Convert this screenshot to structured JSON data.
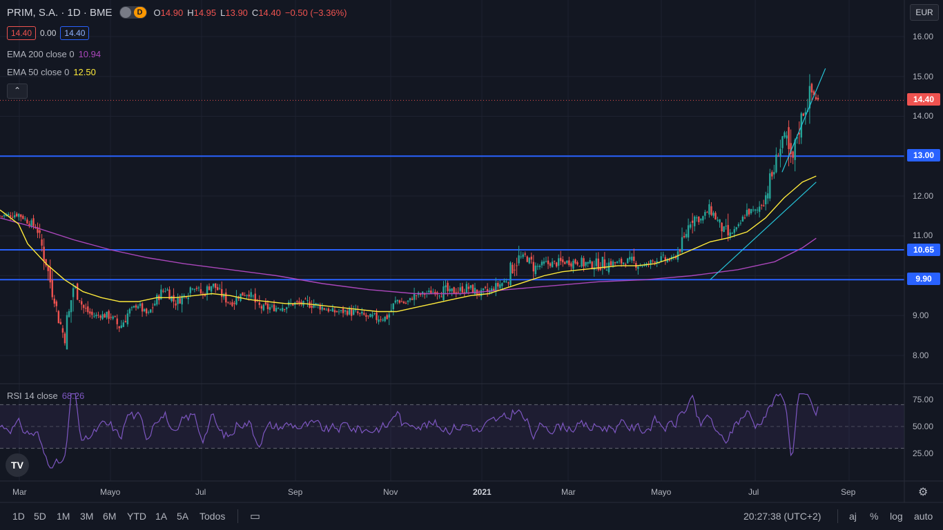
{
  "header": {
    "symbol": "PRIM, S.A. · 1D · BME",
    "toggle_d": "D",
    "o_label": "O",
    "o_value": "14.90",
    "h_label": "H",
    "h_value": "14.95",
    "l_label": "L",
    "l_value": "13.90",
    "c_label": "C",
    "c_value": "14.40",
    "change": "−0.50 (−3.36%)",
    "bid": "14.40",
    "spread": "0.00",
    "ask": "14.40"
  },
  "indicators": {
    "ema200_label": "EMA 200 close 0",
    "ema200_value": "10.94",
    "ema50_label": "EMA 50 close 0",
    "ema50_value": "12.50",
    "rsi_label": "RSI 14 close",
    "rsi_value": "68.26",
    "collapse_glyph": "⌃"
  },
  "price_tags": {
    "current": "14.40",
    "level_13": "13.00",
    "level_1065": "10.65",
    "level_990": "9.90"
  },
  "currency": "EUR",
  "logo": "TV",
  "bottom_toolbar": {
    "ranges": [
      "1D",
      "5D",
      "1M",
      "3M",
      "6M",
      "YTD",
      "1A",
      "5A",
      "Todos"
    ],
    "time": "20:27:38 (UTC+2)",
    "right_buttons": [
      "aj",
      "%",
      "log",
      "auto"
    ]
  },
  "colors": {
    "up": "#26a69a",
    "down": "#ef5350",
    "ema50": "#ffeb3b",
    "ema200": "#ab47bc",
    "hline": "#2962ff",
    "trend": "#26c6da",
    "rsi": "#7e57c2",
    "bg": "#131722"
  },
  "chart_data": [
    {
      "type": "candlestick",
      "title": "PRIM, S.A. · 1D · BME",
      "x_ticks": [
        "Mar",
        "Mayo",
        "Jul",
        "Sep",
        "Nov",
        "2021",
        "Mar",
        "Mayo",
        "Jul",
        "Sep"
      ],
      "y_ticks": [
        "16.00",
        "15.00",
        "14.00",
        "12.00",
        "11.00",
        "9.00",
        "8.00"
      ],
      "ylim": [
        7.4,
        16.7
      ],
      "horizontal_levels": [
        13.0,
        10.65,
        9.9
      ],
      "last_close": 14.4,
      "ema50_last": 12.5,
      "ema200_last": 10.94,
      "close_path": [
        [
          0,
          11.5
        ],
        [
          2,
          11.55
        ],
        [
          4,
          11.2
        ],
        [
          5,
          10.3
        ],
        [
          6,
          9.3
        ],
        [
          7,
          8.4
        ],
        [
          8,
          9.8
        ],
        [
          9,
          9.2
        ],
        [
          10,
          9.0
        ],
        [
          12,
          9.0
        ],
        [
          13,
          8.7
        ],
        [
          14,
          9.1
        ],
        [
          15,
          9.3
        ],
        [
          16,
          9.0
        ],
        [
          17,
          9.4
        ],
        [
          18,
          9.7
        ],
        [
          19,
          9.3
        ],
        [
          20,
          9.5
        ],
        [
          21,
          9.8
        ],
        [
          22,
          9.5
        ],
        [
          23,
          9.8
        ],
        [
          25,
          9.3
        ],
        [
          26,
          9.5
        ],
        [
          27,
          9.6
        ],
        [
          28,
          9.2
        ],
        [
          30,
          9.2
        ],
        [
          32,
          9.3
        ],
        [
          34,
          9.3
        ],
        [
          36,
          9.1
        ],
        [
          38,
          9.1
        ],
        [
          40,
          8.95
        ],
        [
          42,
          8.95
        ],
        [
          43,
          9.4
        ],
        [
          44,
          9.3
        ],
        [
          45,
          9.5
        ],
        [
          47,
          9.6
        ],
        [
          49,
          9.6
        ],
        [
          51,
          9.7
        ],
        [
          52,
          9.55
        ],
        [
          53,
          9.6
        ],
        [
          55,
          9.9
        ],
        [
          56,
          10.4
        ],
        [
          57,
          10.5
        ],
        [
          58,
          10.2
        ],
        [
          59,
          10.3
        ],
        [
          60,
          10.3
        ],
        [
          62,
          10.35
        ],
        [
          64,
          10.3
        ],
        [
          66,
          10.3
        ],
        [
          68,
          10.35
        ],
        [
          70,
          10.25
        ],
        [
          71,
          10.4
        ],
        [
          73,
          10.4
        ],
        [
          74,
          10.8
        ],
        [
          75,
          11.5
        ],
        [
          76,
          11.4
        ],
        [
          77,
          11.7
        ],
        [
          78,
          11.3
        ],
        [
          79,
          11.0
        ],
        [
          80,
          11.2
        ],
        [
          81,
          11.6
        ],
        [
          82,
          11.6
        ],
        [
          83,
          12.0
        ],
        [
          84,
          12.7
        ],
        [
          85,
          13.6
        ],
        [
          85.8,
          12.7
        ],
        [
          86.5,
          13.6
        ],
        [
          87.3,
          14.2
        ],
        [
          88,
          14.6
        ],
        [
          88.7,
          14.4
        ]
      ],
      "ema50_path": [
        [
          0,
          11.65
        ],
        [
          2,
          11.3
        ],
        [
          3,
          10.8
        ],
        [
          5,
          10.3
        ],
        [
          7,
          9.9
        ],
        [
          9,
          9.6
        ],
        [
          11,
          9.45
        ],
        [
          13,
          9.35
        ],
        [
          15,
          9.35
        ],
        [
          17,
          9.45
        ],
        [
          19,
          9.45
        ],
        [
          21,
          9.5
        ],
        [
          23,
          9.55
        ],
        [
          25,
          9.5
        ],
        [
          27,
          9.4
        ],
        [
          29,
          9.35
        ],
        [
          31,
          9.3
        ],
        [
          33,
          9.3
        ],
        [
          35,
          9.25
        ],
        [
          37,
          9.2
        ],
        [
          39,
          9.15
        ],
        [
          41,
          9.1
        ],
        [
          43,
          9.1
        ],
        [
          45,
          9.2
        ],
        [
          47,
          9.3
        ],
        [
          49,
          9.4
        ],
        [
          51,
          9.5
        ],
        [
          53,
          9.55
        ],
        [
          55,
          9.7
        ],
        [
          57,
          9.85
        ],
        [
          59,
          10.0
        ],
        [
          61,
          10.1
        ],
        [
          63,
          10.15
        ],
        [
          65,
          10.2
        ],
        [
          67,
          10.25
        ],
        [
          69,
          10.25
        ],
        [
          71,
          10.3
        ],
        [
          73,
          10.45
        ],
        [
          75,
          10.65
        ],
        [
          77,
          10.85
        ],
        [
          79,
          10.95
        ],
        [
          81,
          11.1
        ],
        [
          83,
          11.45
        ],
        [
          85,
          11.95
        ],
        [
          87,
          12.35
        ],
        [
          88.5,
          12.5
        ]
      ],
      "ema200_path": [
        [
          0,
          11.45
        ],
        [
          4,
          11.2
        ],
        [
          8,
          10.9
        ],
        [
          12,
          10.65
        ],
        [
          16,
          10.45
        ],
        [
          20,
          10.3
        ],
        [
          25,
          10.15
        ],
        [
          30,
          10.0
        ],
        [
          35,
          9.8
        ],
        [
          40,
          9.65
        ],
        [
          45,
          9.55
        ],
        [
          50,
          9.55
        ],
        [
          55,
          9.65
        ],
        [
          60,
          9.75
        ],
        [
          65,
          9.85
        ],
        [
          70,
          9.9
        ],
        [
          75,
          10.0
        ],
        [
          80,
          10.15
        ],
        [
          84,
          10.35
        ],
        [
          87,
          10.7
        ],
        [
          88.5,
          10.94
        ]
      ]
    },
    {
      "type": "line",
      "title": "RSI 14 close",
      "y_ticks": [
        "75.00",
        "50.00",
        "25.00"
      ],
      "ylim": [
        0,
        100
      ],
      "bands": [
        70,
        50,
        30
      ],
      "last_value": 68.26
    }
  ]
}
